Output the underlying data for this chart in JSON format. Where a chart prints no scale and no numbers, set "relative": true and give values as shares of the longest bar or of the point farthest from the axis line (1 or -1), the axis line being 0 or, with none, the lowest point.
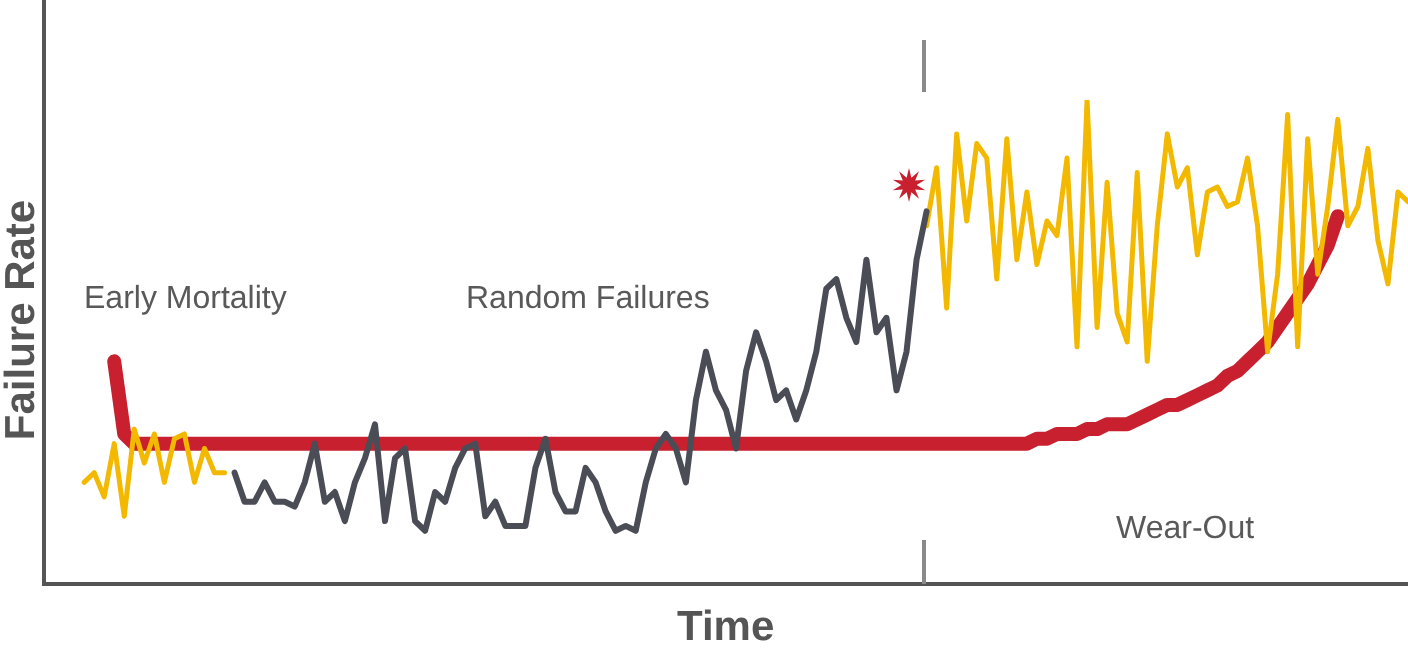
{
  "chart_data": {
    "type": "line",
    "relative": true,
    "xlabel": "Time",
    "ylabel": "Failure Rate",
    "legend": false,
    "annotations": [
      "Early Mortality",
      "Random Failures",
      "Wear-Out"
    ],
    "categories": [
      null,
      null,
      null,
      null,
      null,
      null,
      null,
      null,
      null,
      null,
      null,
      null,
      null,
      null,
      null,
      null,
      null,
      null,
      null,
      null,
      null,
      null,
      null,
      null,
      null,
      null,
      null,
      null,
      null,
      null,
      null,
      null,
      null,
      null,
      null,
      null,
      null,
      null,
      null,
      null,
      null,
      null,
      null,
      null,
      null,
      null,
      null,
      null,
      null,
      null,
      null,
      null,
      null,
      null,
      null,
      null,
      null,
      null,
      null,
      null,
      null,
      null,
      null,
      null,
      null,
      null,
      null,
      null,
      null,
      null,
      null,
      null,
      null,
      null,
      null,
      null,
      null,
      null,
      null,
      null,
      null,
      null,
      null,
      null,
      null,
      null,
      null,
      null,
      null,
      null,
      null,
      null,
      null,
      null,
      null,
      null,
      null,
      null,
      null,
      null,
      null,
      null,
      null,
      null,
      null,
      null,
      null,
      null,
      null,
      null,
      null,
      null,
      null,
      null,
      null,
      null,
      null,
      null,
      null,
      null,
      null,
      null,
      null,
      null,
      null,
      null,
      null,
      null,
      null,
      null,
      null,
      null,
      null,
      null,
      null,
      null,
      null
    ],
    "series": [
      {
        "color": "#c8202f",
        "values": [
          null,
          null,
          null,
          null,
          null,
          null,
          null,
          0.46,
          0.31,
          0.29,
          0.29,
          0.29,
          0.29,
          0.29,
          0.29,
          0.29,
          0.29,
          0.29,
          0.29,
          0.29,
          0.29,
          0.29,
          0.29,
          0.29,
          0.29,
          0.29,
          0.29,
          0.29,
          0.29,
          0.29,
          0.29,
          0.29,
          0.29,
          0.29,
          0.29,
          0.29,
          0.29,
          0.29,
          0.29,
          0.29,
          0.29,
          0.29,
          0.29,
          0.29,
          0.29,
          0.29,
          0.29,
          0.29,
          0.29,
          0.29,
          0.29,
          0.29,
          0.29,
          0.29,
          0.29,
          0.29,
          0.29,
          0.29,
          0.29,
          0.29,
          0.29,
          0.29,
          0.29,
          0.29,
          0.29,
          0.29,
          0.29,
          0.29,
          0.29,
          0.29,
          0.29,
          0.29,
          0.29,
          0.29,
          0.29,
          0.29,
          0.29,
          0.29,
          0.29,
          0.29,
          0.29,
          0.29,
          0.29,
          0.29,
          0.29,
          0.29,
          0.29,
          0.29,
          0.29,
          0.29,
          0.29,
          0.29,
          0.29,
          0.29,
          0.29,
          0.29,
          0.29,
          0.29,
          0.29,
          0.3,
          0.3,
          0.31,
          0.31,
          0.31,
          0.32,
          0.32,
          0.33,
          0.33,
          0.33,
          0.34,
          0.35,
          0.36,
          0.37,
          0.37,
          0.38,
          0.39,
          0.4,
          0.41,
          0.43,
          0.44,
          0.46,
          0.48,
          0.5,
          0.53,
          0.56,
          0.59,
          0.62,
          0.66,
          0.7,
          0.76,
          null,
          null,
          null,
          null,
          null,
          null,
          null
        ]
      },
      {
        "color": "#f2b900",
        "values": [
          null,
          null,
          null,
          null,
          0.21,
          0.23,
          0.18,
          0.29,
          0.14,
          0.32,
          0.25,
          0.31,
          0.21,
          0.3,
          0.31,
          0.21,
          0.28,
          0.23,
          0.23,
          null,
          null,
          null,
          null,
          null,
          null,
          null,
          null,
          null,
          null,
          null,
          null,
          null,
          null,
          null,
          null,
          null,
          null,
          null,
          null,
          null,
          null,
          null,
          null,
          null,
          null,
          null,
          null,
          null,
          null,
          null,
          null,
          null,
          null,
          null,
          null,
          null,
          null,
          null,
          null,
          null,
          null,
          null,
          null,
          null,
          null,
          null,
          null,
          null,
          null,
          null,
          null,
          null,
          null,
          null,
          null,
          null,
          null,
          null,
          null,
          null,
          null,
          null,
          null,
          null,
          null,
          null,
          null,
          null,
          0.74,
          0.86,
          0.57,
          0.93,
          0.75,
          0.91,
          0.88,
          0.63,
          0.92,
          0.67,
          0.81,
          0.66,
          0.75,
          0.72,
          0.88,
          0.49,
          1,
          0.53,
          0.83,
          0.56,
          0.5,
          0.85,
          0.46,
          0.74,
          0.93,
          0.82,
          0.86,
          0.68,
          0.81,
          0.82,
          0.78,
          0.79,
          0.88,
          0.74,
          0.48,
          0.64,
          0.97,
          0.49,
          0.92,
          0.64,
          0.78,
          0.96,
          0.74,
          0.78,
          0.9,
          0.71,
          0.62,
          0.81,
          0.79
        ]
      },
      {
        "color": "#4a4d55",
        "values": [
          null,
          null,
          null,
          null,
          null,
          null,
          null,
          null,
          null,
          null,
          null,
          null,
          null,
          null,
          null,
          null,
          null,
          null,
          null,
          0.23,
          0.17,
          0.17,
          0.21,
          0.17,
          0.17,
          0.16,
          0.21,
          0.29,
          0.17,
          0.19,
          0.13,
          0.21,
          0.26,
          0.33,
          0.13,
          0.26,
          0.28,
          0.13,
          0.11,
          0.19,
          0.17,
          0.24,
          0.28,
          0.29,
          0.14,
          0.17,
          0.12,
          0.12,
          0.12,
          0.24,
          0.3,
          0.19,
          0.15,
          0.15,
          0.24,
          0.21,
          0.15,
          0.11,
          0.12,
          0.11,
          0.21,
          0.28,
          0.31,
          0.28,
          0.21,
          0.38,
          0.48,
          0.4,
          0.36,
          0.28,
          0.44,
          0.52,
          0.46,
          0.38,
          0.4,
          0.34,
          0.4,
          0.48,
          0.61,
          0.63,
          0.55,
          0.5,
          0.67,
          0.52,
          0.55,
          0.4,
          0.48,
          0.67,
          0.77,
          null,
          null,
          null,
          null,
          null,
          null,
          null,
          null,
          null,
          null,
          null,
          null,
          null,
          null,
          null,
          null,
          null,
          null,
          null,
          null,
          null,
          null,
          null,
          null,
          null,
          null,
          null,
          null,
          null,
          null,
          null,
          null,
          null,
          null,
          null,
          null,
          null,
          null,
          null,
          null,
          null,
          null,
          null,
          null,
          null,
          null,
          null,
          null
        ]
      }
    ]
  }
}
